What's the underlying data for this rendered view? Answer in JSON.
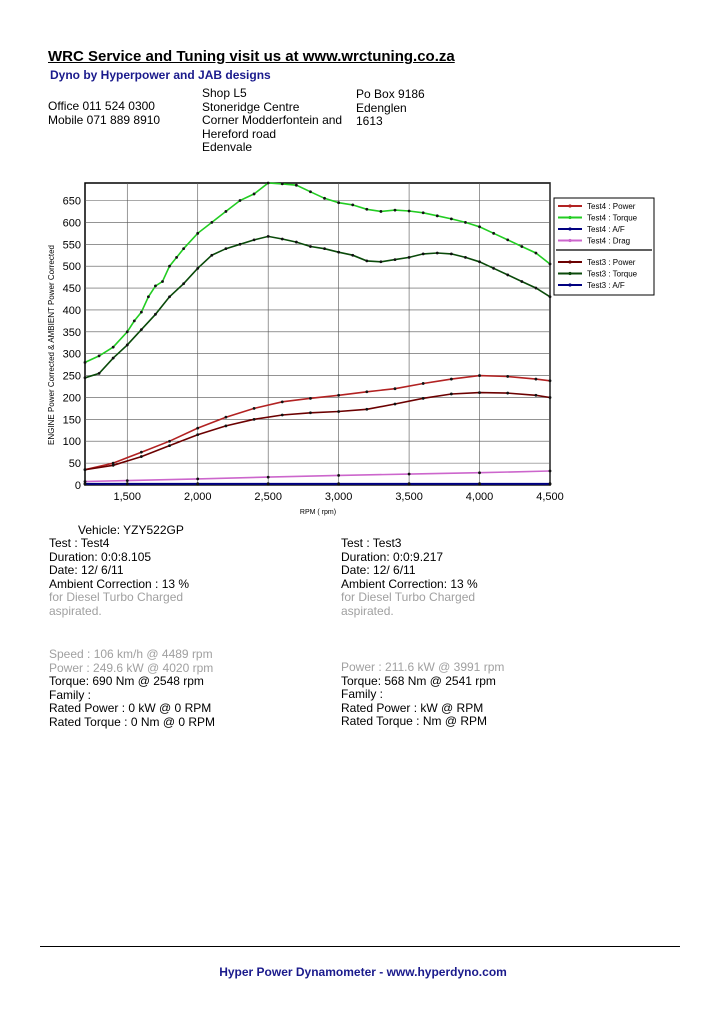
{
  "header": {
    "title": "WRC Service and Tuning visit us at www.wrctuning.co.za",
    "subtitle": "Dyno by Hyperpower and JAB designs",
    "office": "Office 011 524 0300",
    "mobile": "Mobile 071 889 8910",
    "address": [
      "Shop L5",
      "Stoneridge Centre",
      "Corner Modderfontein and",
      "Hereford road",
      "Edenvale"
    ],
    "pobox": [
      "Po Box 9186",
      "Edenglen",
      "1613"
    ]
  },
  "chart_data": {
    "type": "line",
    "xlabel": "RPM ( rpm)",
    "ylabel": "ENGINE Power Corrected & AMBIENT Power Corrected",
    "xlim": [
      1200,
      4500
    ],
    "ylim": [
      0,
      690
    ],
    "xticks": [
      1500,
      2000,
      2500,
      3000,
      3500,
      4000,
      4500
    ],
    "xtick_labels": [
      "1,500",
      "2,000",
      "2,500",
      "3,000",
      "3,500",
      "4,000",
      "4,500"
    ],
    "yticks": [
      0,
      50,
      100,
      150,
      200,
      250,
      300,
      350,
      400,
      450,
      500,
      550,
      600,
      650
    ],
    "grid": true,
    "legend_position": "right",
    "series": [
      {
        "name": "Test4 : Power",
        "color": "#b22222",
        "x": [
          1200,
          1400,
          1600,
          1800,
          2000,
          2200,
          2400,
          2600,
          2800,
          3000,
          3200,
          3400,
          3600,
          3800,
          4000,
          4200,
          4400,
          4500
        ],
        "y": [
          35,
          50,
          75,
          100,
          130,
          155,
          175,
          190,
          198,
          205,
          213,
          220,
          232,
          242,
          250,
          248,
          242,
          238
        ]
      },
      {
        "name": "Test4 : Torque",
        "color": "#22cc22",
        "x": [
          1200,
          1300,
          1400,
          1500,
          1550,
          1600,
          1650,
          1700,
          1750,
          1800,
          1850,
          1900,
          2000,
          2100,
          2200,
          2300,
          2400,
          2500,
          2600,
          2700,
          2800,
          2900,
          3000,
          3100,
          3200,
          3300,
          3400,
          3500,
          3600,
          3700,
          3800,
          3900,
          4000,
          4100,
          4200,
          4300,
          4400,
          4500
        ],
        "y": [
          280,
          295,
          315,
          350,
          375,
          395,
          430,
          455,
          465,
          500,
          520,
          540,
          575,
          600,
          625,
          650,
          665,
          690,
          688,
          685,
          670,
          655,
          645,
          640,
          630,
          625,
          628,
          626,
          622,
          615,
          608,
          600,
          590,
          575,
          560,
          545,
          530,
          505
        ]
      },
      {
        "name": "Test4 : A/F",
        "color": "#000080",
        "x": [
          1200,
          1500,
          2000,
          2500,
          3000,
          3500,
          4000,
          4500
        ],
        "y": [
          3,
          3,
          3,
          3,
          3,
          3,
          3,
          3
        ]
      },
      {
        "name": "Test4 : Drag",
        "color": "#cc66cc",
        "x": [
          1200,
          1500,
          2000,
          2500,
          3000,
          3500,
          4000,
          4500
        ],
        "y": [
          8,
          10,
          14,
          18,
          22,
          25,
          28,
          32
        ]
      },
      {
        "name": "Test3 : Power",
        "color": "#6b0000",
        "x": [
          1200,
          1400,
          1600,
          1800,
          2000,
          2200,
          2400,
          2600,
          2800,
          3000,
          3200,
          3400,
          3600,
          3800,
          4000,
          4200,
          4400,
          4500
        ],
        "y": [
          35,
          45,
          65,
          90,
          115,
          135,
          150,
          160,
          165,
          168,
          173,
          185,
          198,
          208,
          211,
          210,
          205,
          200
        ]
      },
      {
        "name": "Test3 : Torque",
        "color": "#0a4a0a",
        "x": [
          1200,
          1300,
          1400,
          1500,
          1600,
          1700,
          1800,
          1900,
          2000,
          2100,
          2200,
          2300,
          2400,
          2500,
          2600,
          2700,
          2800,
          2900,
          3000,
          3100,
          3200,
          3300,
          3400,
          3500,
          3600,
          3700,
          3800,
          3900,
          4000,
          4100,
          4200,
          4300,
          4400,
          4500
        ],
        "y": [
          245,
          255,
          290,
          320,
          355,
          390,
          430,
          460,
          495,
          525,
          540,
          550,
          560,
          568,
          562,
          555,
          545,
          540,
          532,
          525,
          512,
          510,
          515,
          520,
          528,
          530,
          528,
          520,
          510,
          495,
          480,
          465,
          450,
          430
        ]
      },
      {
        "name": "Test3 : A/F",
        "color": "#000080",
        "x": [
          1200,
          1500,
          2000,
          2500,
          3000,
          3500,
          4000,
          4500
        ],
        "y": [
          2,
          2,
          2,
          2,
          2,
          2,
          2,
          2
        ]
      }
    ]
  },
  "test_left": {
    "vehicle": "Vehicle: YZY522GP",
    "test": "Test    : Test4",
    "duration": "Duration: 0:0:8.105",
    "date": "Date: 12/ 6/11",
    "ambient": "Ambient Correction : 13 %",
    "note1": " for Diesel Turbo Charged",
    "note2": "aspirated.",
    "speed": "Speed : 106 km/h @ 4489 rpm",
    "power": "Power : 249.6 kW @ 4020 rpm",
    "torque": "Torque: 690 Nm @ 2548 rpm",
    "family": "Family :",
    "rated_power": "Rated Power : 0 kW @ 0 RPM",
    "rated_torque": "Rated Torque : 0 Nm @ 0 RPM"
  },
  "test_right": {
    "test": "Test    : Test3",
    "duration": "Duration: 0:0:9.217",
    "date": "Date: 12/ 6/11",
    "ambient": "Ambient Correction: 13 %",
    "note1": " for Diesel Turbo Charged",
    "note2": "aspirated.",
    "power": "Power : 211.6 kW @ 3991 rpm",
    "torque": "Torque: 568 Nm @ 2541 rpm",
    "family": "Family :",
    "rated_power": "Rated Power :  kW @  RPM",
    "rated_torque": "Rated Torque :  Nm @  RPM"
  },
  "footer": "Hyper Power Dynamometer  -  www.hyperdyno.com"
}
